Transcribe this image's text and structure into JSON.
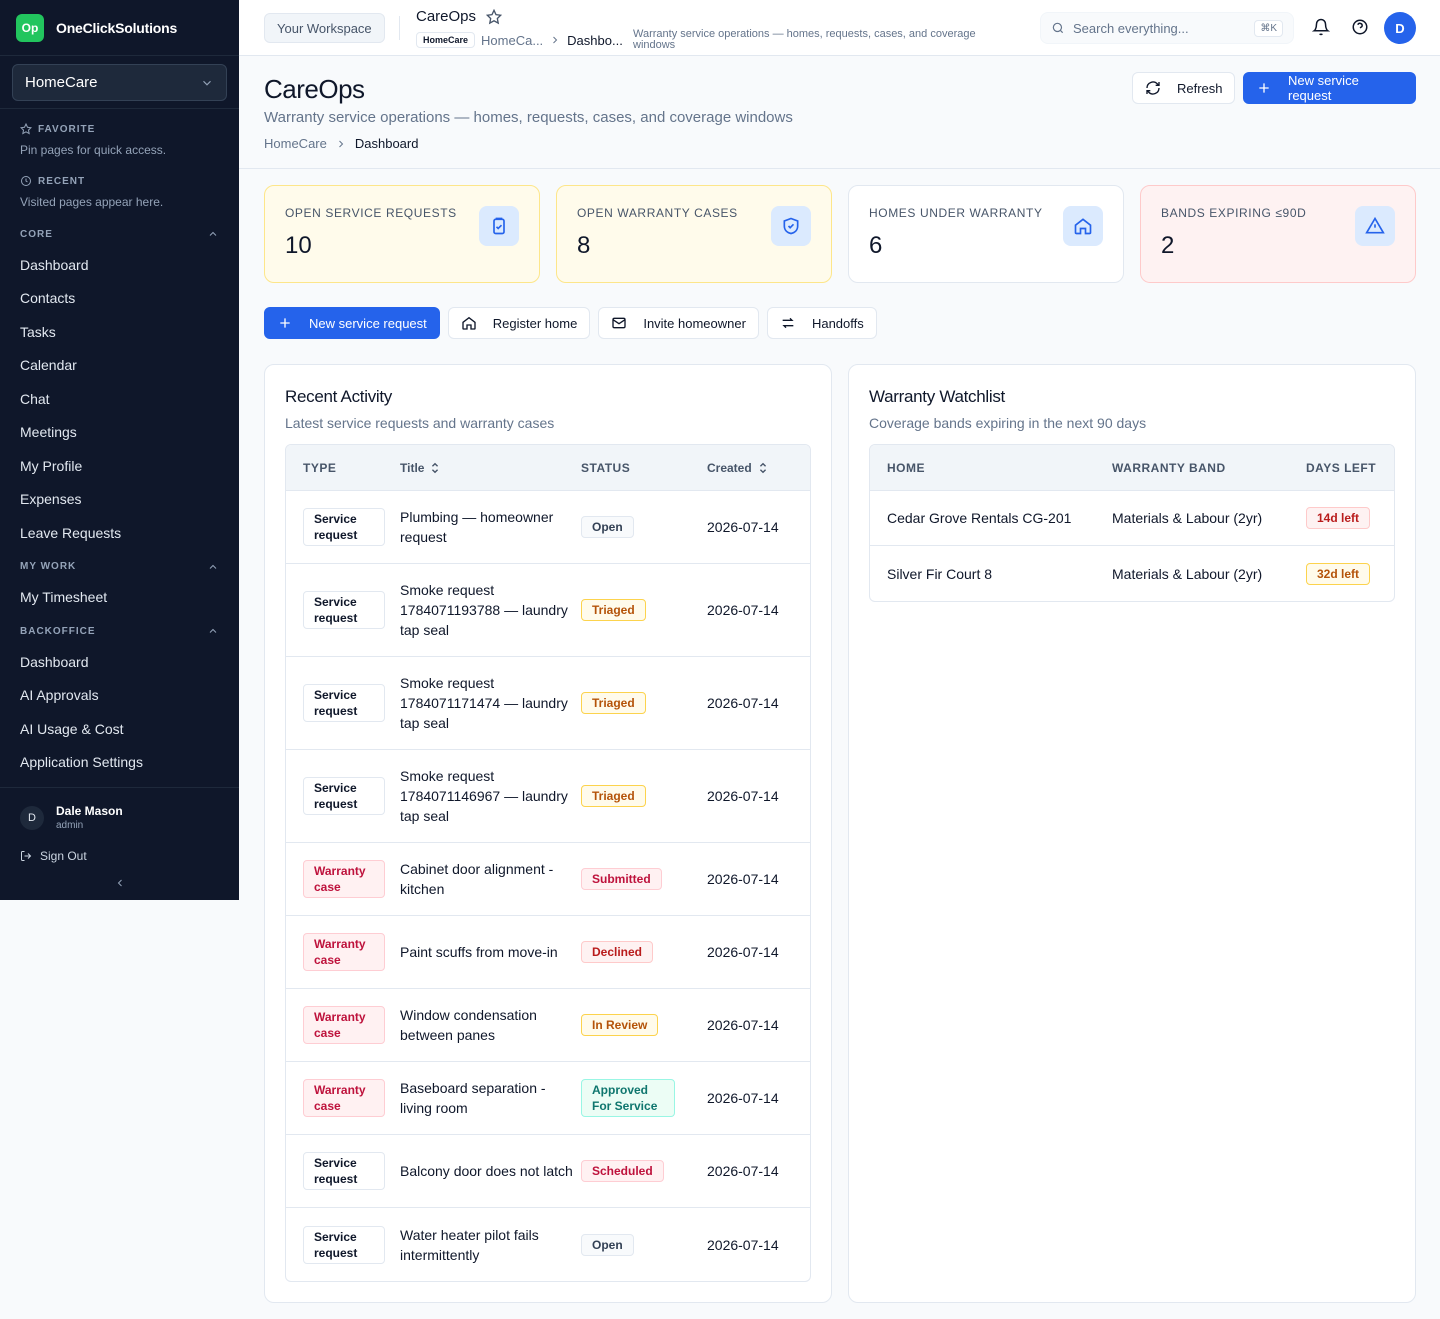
{
  "brand": {
    "logo": "Op",
    "name": "OneClickSolutions"
  },
  "org_selector": {
    "value": "HomeCare"
  },
  "sidebar": {
    "favorite": {
      "title": "FAVORITE",
      "note": "Pin pages for quick access."
    },
    "recent": {
      "title": "RECENT",
      "note": "Visited pages appear here."
    },
    "sections": [
      {
        "title": "CORE",
        "items": [
          "Dashboard",
          "Contacts",
          "Tasks",
          "Calendar",
          "Chat",
          "Meetings",
          "My Profile",
          "Expenses",
          "Leave Requests"
        ]
      },
      {
        "title": "MY WORK",
        "items": [
          "My Timesheet"
        ]
      },
      {
        "title": "BACKOFFICE",
        "items": [
          "Dashboard",
          "AI Approvals",
          "AI Usage & Cost",
          "Application Settings"
        ]
      }
    ],
    "user": {
      "initial": "D",
      "name": "Dale Mason",
      "role": "admin"
    },
    "sign_out": "Sign Out"
  },
  "topbar": {
    "workspace": "Your Workspace",
    "title": "CareOps",
    "crumb_chip": "HomeCare",
    "crumb_1": "HomeCa...",
    "crumb_2": "Dashbo...",
    "description": "Warranty service operations — homes, requests, cases, and coverage windows",
    "search_placeholder": "Search everything...",
    "search_shortcut": "⌘K",
    "avatar": "D"
  },
  "page": {
    "title": "CareOps",
    "subtitle": "Warranty service operations — homes, requests, cases, and coverage windows",
    "breadcrumb": [
      "HomeCare",
      "Dashboard"
    ],
    "refresh": "Refresh",
    "new_request": "New service request"
  },
  "stats": [
    {
      "label": "OPEN SERVICE REQUESTS",
      "value": "10",
      "icon": "clipboard-check-icon"
    },
    {
      "label": "OPEN WARRANTY CASES",
      "value": "8",
      "icon": "shield-check-icon"
    },
    {
      "label": "HOMES UNDER WARRANTY",
      "value": "6",
      "icon": "home-icon"
    },
    {
      "label": "BANDS EXPIRING ≤90D",
      "value": "2",
      "icon": "alert-triangle-icon"
    }
  ],
  "quick_actions": [
    "New service request",
    "Register home",
    "Invite homeowner",
    "Handoffs"
  ],
  "activity": {
    "title": "Recent Activity",
    "subtitle": "Latest service requests and warranty cases",
    "columns": {
      "type": "TYPE",
      "title": "Title",
      "status": "STATUS",
      "created": "Created"
    },
    "rows": [
      {
        "type": "Service request",
        "kind": "service",
        "title": "Plumbing — homeowner request",
        "status": "Open",
        "tone": "open",
        "created": "2026-07-14"
      },
      {
        "type": "Service request",
        "kind": "service",
        "title": "Smoke request 1784071193788 — laundry tap seal",
        "status": "Triaged",
        "tone": "amber",
        "created": "2026-07-14"
      },
      {
        "type": "Service request",
        "kind": "service",
        "title": "Smoke request 1784071171474 — laundry tap seal",
        "status": "Triaged",
        "tone": "amber",
        "created": "2026-07-14"
      },
      {
        "type": "Service request",
        "kind": "service",
        "title": "Smoke request 1784071146967 — laundry tap seal",
        "status": "Triaged",
        "tone": "amber",
        "created": "2026-07-14"
      },
      {
        "type": "Warranty case",
        "kind": "warranty",
        "title": "Cabinet door alignment - kitchen",
        "status": "Submitted",
        "tone": "rose",
        "created": "2026-07-14"
      },
      {
        "type": "Warranty case",
        "kind": "warranty",
        "title": "Paint scuffs from move-in",
        "status": "Declined",
        "tone": "red",
        "created": "2026-07-14"
      },
      {
        "type": "Warranty case",
        "kind": "warranty",
        "title": "Window condensation between panes",
        "status": "In Review",
        "tone": "amber",
        "created": "2026-07-14"
      },
      {
        "type": "Warranty case",
        "kind": "warranty",
        "title": "Baseboard separation - living room",
        "status": "Approved For Service",
        "tone": "teal",
        "created": "2026-07-14"
      },
      {
        "type": "Service request",
        "kind": "service",
        "title": "Balcony door does not latch",
        "status": "Scheduled",
        "tone": "rose",
        "created": "2026-07-14"
      },
      {
        "type": "Service request",
        "kind": "service",
        "title": "Water heater pilot fails intermittently",
        "status": "Open",
        "tone": "open",
        "created": "2026-07-14"
      }
    ]
  },
  "watchlist": {
    "title": "Warranty Watchlist",
    "subtitle": "Coverage bands expiring in the next 90 days",
    "columns": {
      "home": "HOME",
      "band": "WARRANTY BAND",
      "days": "DAYS LEFT"
    },
    "rows": [
      {
        "home": "Cedar Grove Rentals CG-201",
        "band": "Materials & Labour (2yr)",
        "days": "14d left",
        "tone": "red"
      },
      {
        "home": "Silver Fir Court 8",
        "band": "Materials & Labour (2yr)",
        "days": "32d left",
        "tone": "amber"
      }
    ]
  },
  "colors": {
    "primary": "#2563eb",
    "sidebar_bg": "#0f172a",
    "brand_logo": "#22c55e"
  }
}
